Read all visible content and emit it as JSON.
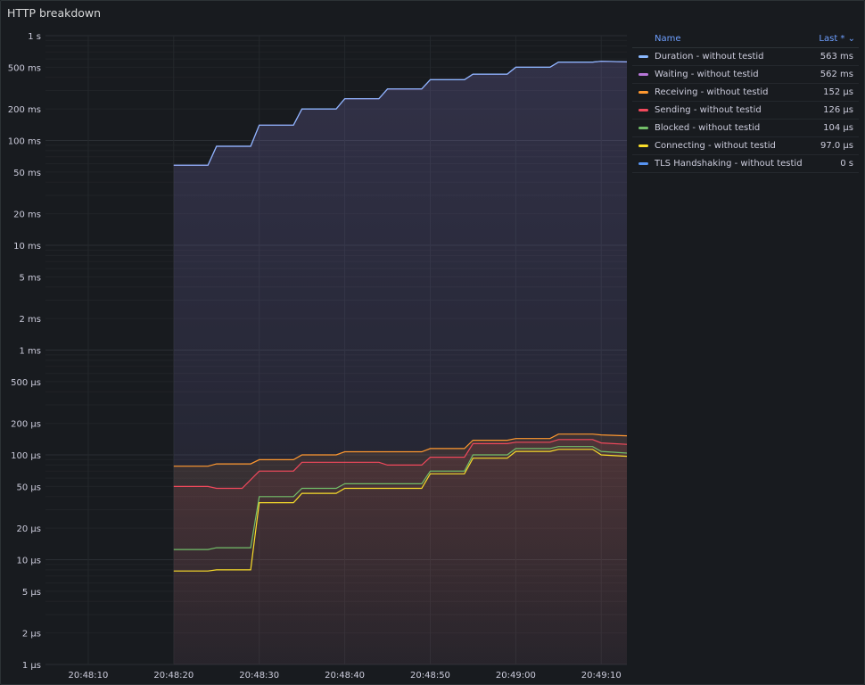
{
  "panel": {
    "title": "HTTP breakdown"
  },
  "legend": {
    "header_name": "Name",
    "header_value": "Last * ⌄",
    "rows": [
      {
        "name": "Duration - without testid",
        "value": "563 ms",
        "color": "#8ab8ff"
      },
      {
        "name": "Waiting - without testid",
        "value": "562 ms",
        "color": "#b877d9"
      },
      {
        "name": "Receiving - without testid",
        "value": "152 µs",
        "color": "#ff9830"
      },
      {
        "name": "Sending - without testid",
        "value": "126 µs",
        "color": "#f2495c"
      },
      {
        "name": "Blocked - without testid",
        "value": "104 µs",
        "color": "#73bf69"
      },
      {
        "name": "Connecting - without testid",
        "value": "97.0 µs",
        "color": "#fade2a"
      },
      {
        "name": "TLS Handshaking - without testid",
        "value": "0 s",
        "color": "#5794f2"
      }
    ]
  },
  "chart_data": {
    "type": "line",
    "title": "HTTP breakdown",
    "yscale": "log",
    "y_unit": "seconds",
    "ylim": [
      1e-06,
      1
    ],
    "xlim": [
      "20:48:05",
      "20:49:13"
    ],
    "x_ticks": [
      "20:48:10",
      "20:48:20",
      "20:48:30",
      "20:48:40",
      "20:48:50",
      "20:49:00",
      "20:49:10"
    ],
    "y_ticks": [
      {
        "value": 1,
        "label": "1 s"
      },
      {
        "value": 0.5,
        "label": "500 ms"
      },
      {
        "value": 0.2,
        "label": "200 ms"
      },
      {
        "value": 0.1,
        "label": "100 ms"
      },
      {
        "value": 0.05,
        "label": "50 ms"
      },
      {
        "value": 0.02,
        "label": "20 ms"
      },
      {
        "value": 0.01,
        "label": "10 ms"
      },
      {
        "value": 0.005,
        "label": "5 ms"
      },
      {
        "value": 0.002,
        "label": "2 ms"
      },
      {
        "value": 0.001,
        "label": "1 ms"
      },
      {
        "value": 0.0005,
        "label": "500 µs"
      },
      {
        "value": 0.0002,
        "label": "200 µs"
      },
      {
        "value": 0.0001,
        "label": "100 µs"
      },
      {
        "value": 5e-05,
        "label": "50 µs"
      },
      {
        "value": 2e-05,
        "label": "20 µs"
      },
      {
        "value": 1e-05,
        "label": "10 µs"
      },
      {
        "value": 5e-06,
        "label": "5 µs"
      },
      {
        "value": 2e-06,
        "label": "2 µs"
      },
      {
        "value": 1e-06,
        "label": "1 µs"
      }
    ],
    "grid": true,
    "legend": "right",
    "series": [
      {
        "name": "Waiting - without testid",
        "color": "#b877d9",
        "points": [
          [
            "20:48:20",
            0.058
          ],
          [
            "20:48:24",
            0.058
          ],
          [
            "20:48:25",
            0.088
          ],
          [
            "20:48:29",
            0.088
          ],
          [
            "20:48:30",
            0.14
          ],
          [
            "20:48:34",
            0.14
          ],
          [
            "20:48:35",
            0.2
          ],
          [
            "20:48:39",
            0.2
          ],
          [
            "20:48:40",
            0.25
          ],
          [
            "20:48:44",
            0.25
          ],
          [
            "20:48:45",
            0.31
          ],
          [
            "20:48:49",
            0.31
          ],
          [
            "20:48:50",
            0.38
          ],
          [
            "20:48:54",
            0.38
          ],
          [
            "20:48:55",
            0.43
          ],
          [
            "20:48:59",
            0.43
          ],
          [
            "20:49:00",
            0.5
          ],
          [
            "20:49:04",
            0.5
          ],
          [
            "20:49:05",
            0.56
          ],
          [
            "20:49:09",
            0.56
          ],
          [
            "20:49:10",
            0.57
          ],
          [
            "20:49:13",
            0.562
          ]
        ]
      },
      {
        "name": "Duration - without testid",
        "color": "#8ab8ff",
        "points": [
          [
            "20:48:20",
            0.0581
          ],
          [
            "20:48:24",
            0.0581
          ],
          [
            "20:48:25",
            0.0881
          ],
          [
            "20:48:29",
            0.0881
          ],
          [
            "20:48:30",
            0.1401
          ],
          [
            "20:48:34",
            0.1401
          ],
          [
            "20:48:35",
            0.2001
          ],
          [
            "20:48:39",
            0.2001
          ],
          [
            "20:48:40",
            0.2501
          ],
          [
            "20:48:44",
            0.2501
          ],
          [
            "20:48:45",
            0.3101
          ],
          [
            "20:48:49",
            0.3101
          ],
          [
            "20:48:50",
            0.3801
          ],
          [
            "20:48:54",
            0.3801
          ],
          [
            "20:48:55",
            0.4301
          ],
          [
            "20:48:59",
            0.4301
          ],
          [
            "20:49:00",
            0.5001
          ],
          [
            "20:49:04",
            0.5001
          ],
          [
            "20:49:05",
            0.5601
          ],
          [
            "20:49:09",
            0.5601
          ],
          [
            "20:49:10",
            0.5701
          ],
          [
            "20:49:13",
            0.563
          ]
        ]
      },
      {
        "name": "Receiving - without testid",
        "color": "#ff9830",
        "points": [
          [
            "20:48:20",
            7.8e-05
          ],
          [
            "20:48:24",
            7.8e-05
          ],
          [
            "20:48:25",
            8.2e-05
          ],
          [
            "20:48:29",
            8.2e-05
          ],
          [
            "20:48:30",
            9e-05
          ],
          [
            "20:48:34",
            9e-05
          ],
          [
            "20:48:35",
            0.0001
          ],
          [
            "20:48:39",
            0.0001
          ],
          [
            "20:48:40",
            0.000107
          ],
          [
            "20:48:49",
            0.000107
          ],
          [
            "20:48:50",
            0.000115
          ],
          [
            "20:48:54",
            0.000115
          ],
          [
            "20:48:55",
            0.000138
          ],
          [
            "20:48:59",
            0.000138
          ],
          [
            "20:49:00",
            0.000143
          ],
          [
            "20:49:04",
            0.000143
          ],
          [
            "20:49:05",
            0.000158
          ],
          [
            "20:49:09",
            0.000158
          ],
          [
            "20:49:10",
            0.000155
          ],
          [
            "20:49:13",
            0.000152
          ]
        ]
      },
      {
        "name": "Sending - without testid",
        "color": "#f2495c",
        "points": [
          [
            "20:48:20",
            5e-05
          ],
          [
            "20:48:24",
            5e-05
          ],
          [
            "20:48:25",
            4.8e-05
          ],
          [
            "20:48:28",
            4.8e-05
          ],
          [
            "20:48:30",
            7e-05
          ],
          [
            "20:48:34",
            7e-05
          ],
          [
            "20:48:35",
            8.5e-05
          ],
          [
            "20:48:44",
            8.5e-05
          ],
          [
            "20:48:45",
            8e-05
          ],
          [
            "20:48:49",
            8e-05
          ],
          [
            "20:48:50",
            9.5e-05
          ],
          [
            "20:48:54",
            9.5e-05
          ],
          [
            "20:48:55",
            0.000128
          ],
          [
            "20:48:59",
            0.000128
          ],
          [
            "20:49:00",
            0.000132
          ],
          [
            "20:49:04",
            0.000132
          ],
          [
            "20:49:05",
            0.00014
          ],
          [
            "20:49:09",
            0.00014
          ],
          [
            "20:49:10",
            0.00013
          ],
          [
            "20:49:13",
            0.000126
          ]
        ]
      },
      {
        "name": "Blocked - without testid",
        "color": "#73bf69",
        "points": [
          [
            "20:48:20",
            1.25e-05
          ],
          [
            "20:48:24",
            1.25e-05
          ],
          [
            "20:48:25",
            1.3e-05
          ],
          [
            "20:48:29",
            1.3e-05
          ],
          [
            "20:48:30",
            4e-05
          ],
          [
            "20:48:34",
            4e-05
          ],
          [
            "20:48:35",
            4.8e-05
          ],
          [
            "20:48:39",
            4.8e-05
          ],
          [
            "20:48:40",
            5.3e-05
          ],
          [
            "20:48:49",
            5.3e-05
          ],
          [
            "20:48:50",
            7e-05
          ],
          [
            "20:48:54",
            7e-05
          ],
          [
            "20:48:55",
            0.0001
          ],
          [
            "20:48:59",
            0.0001
          ],
          [
            "20:49:00",
            0.000115
          ],
          [
            "20:49:04",
            0.000115
          ],
          [
            "20:49:05",
            0.00012
          ],
          [
            "20:49:09",
            0.00012
          ],
          [
            "20:49:10",
            0.000108
          ],
          [
            "20:49:13",
            0.000104
          ]
        ]
      },
      {
        "name": "Connecting - without testid",
        "color": "#fade2a",
        "points": [
          [
            "20:48:20",
            7.8e-06
          ],
          [
            "20:48:24",
            7.8e-06
          ],
          [
            "20:48:25",
            8e-06
          ],
          [
            "20:48:29",
            8e-06
          ],
          [
            "20:48:30",
            3.5e-05
          ],
          [
            "20:48:34",
            3.5e-05
          ],
          [
            "20:48:35",
            4.3e-05
          ],
          [
            "20:48:39",
            4.3e-05
          ],
          [
            "20:48:40",
            4.8e-05
          ],
          [
            "20:48:49",
            4.8e-05
          ],
          [
            "20:48:50",
            6.6e-05
          ],
          [
            "20:48:54",
            6.6e-05
          ],
          [
            "20:48:55",
            9.3e-05
          ],
          [
            "20:48:59",
            9.3e-05
          ],
          [
            "20:49:00",
            0.000108
          ],
          [
            "20:49:04",
            0.000108
          ],
          [
            "20:49:05",
            0.000113
          ],
          [
            "20:49:09",
            0.000113
          ],
          [
            "20:49:10",
            0.0001
          ],
          [
            "20:49:13",
            9.7e-05
          ]
        ]
      }
    ]
  }
}
